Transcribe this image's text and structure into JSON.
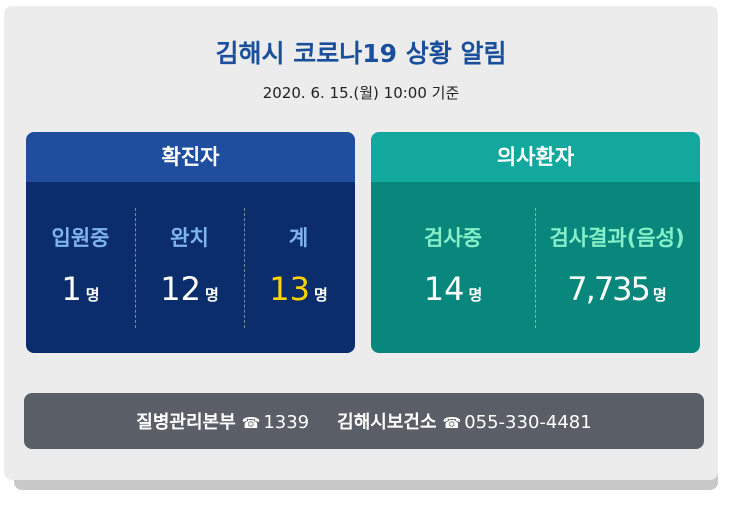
{
  "header": {
    "title": "김해시 코로나19 상황 알림",
    "subtitle": "2020. 6. 15.(월) 10:00 기준"
  },
  "panels": [
    {
      "title": "확진자",
      "items": [
        {
          "label": "입원중",
          "count": "1",
          "unit": "명"
        },
        {
          "label": "완치",
          "count": "12",
          "unit": "명"
        },
        {
          "label": "계",
          "count": "13",
          "unit": "명"
        }
      ]
    },
    {
      "title": "의사환자",
      "items": [
        {
          "label": "검사중",
          "count": "14",
          "unit": "명"
        },
        {
          "label": "검사결과(음성)",
          "count": "7,735",
          "unit": "명"
        }
      ]
    }
  ],
  "footer": {
    "contacts": [
      {
        "name": "질병관리본부",
        "icon": "☎",
        "phone": "1339"
      },
      {
        "name": "김해시보건소",
        "icon": "☎",
        "phone": "055-330-4481"
      }
    ]
  }
}
